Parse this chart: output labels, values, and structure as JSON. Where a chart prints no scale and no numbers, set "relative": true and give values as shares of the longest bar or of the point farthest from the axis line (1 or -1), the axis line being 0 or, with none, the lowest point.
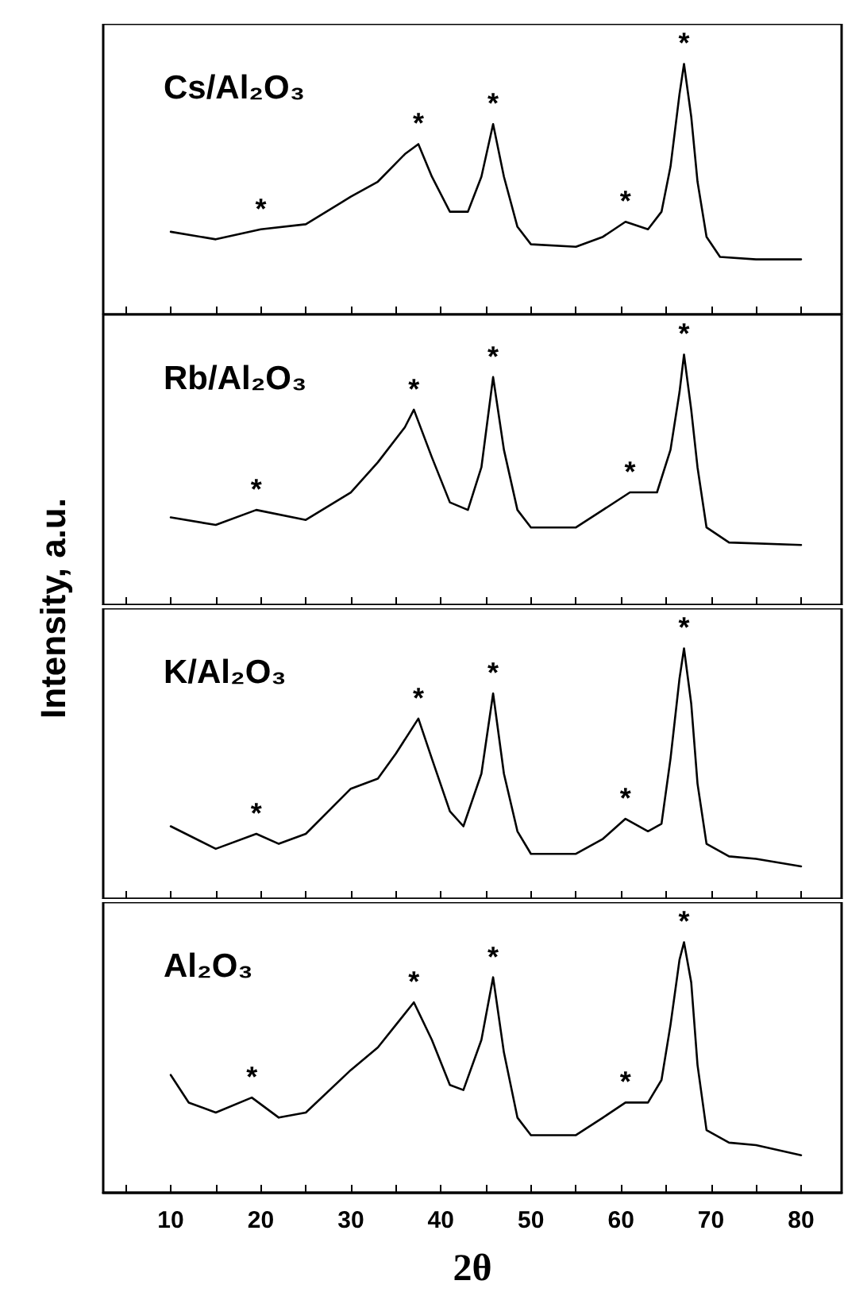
{
  "chart_data": [
    {
      "type": "line",
      "relative": true,
      "marker": "none",
      "tick_labels": false,
      "ylabel": "Intensity, a.u.",
      "xlim": [
        2.5,
        84.5
      ],
      "xticks": [
        {
          "value": 5,
          "label": null
        },
        10,
        {
          "value": 15,
          "label": null
        },
        20,
        {
          "value": 25,
          "label": null
        },
        30,
        {
          "value": 35,
          "label": null
        },
        40,
        {
          "value": 45,
          "label": null
        },
        50,
        {
          "value": 55,
          "label": null
        },
        60,
        {
          "value": 65,
          "label": null
        },
        70,
        {
          "value": 75,
          "label": null
        },
        80
      ],
      "x": [
        10,
        15,
        20,
        25,
        30,
        33,
        36,
        37.5,
        39,
        41,
        43,
        44.5,
        45.8,
        47,
        48.5,
        50,
        55,
        58,
        60.5,
        63,
        64.5,
        65.5,
        66.5,
        67,
        67.8,
        68.5,
        69.5,
        71,
        75,
        80
      ],
      "series": [
        {
          "name": "Cs/Al₂O₃",
          "color": "#000000",
          "values": [
            0.33,
            0.3,
            0.34,
            0.36,
            0.47,
            0.53,
            0.64,
            0.68,
            0.55,
            0.41,
            0.41,
            0.55,
            0.76,
            0.55,
            0.35,
            0.28,
            0.27,
            0.31,
            0.37,
            0.34,
            0.41,
            0.59,
            0.88,
            1.0,
            0.79,
            0.53,
            0.31,
            0.23,
            0.22,
            0.22
          ]
        }
      ],
      "annotations": [
        {
          "text": "*",
          "x": 20,
          "y": 0.34
        },
        {
          "text": "*",
          "x": 37.5,
          "y": 0.68
        },
        {
          "text": "*",
          "x": 45.8,
          "y": 0.76
        },
        {
          "text": "*",
          "x": 60.5,
          "y": 0.37
        },
        {
          "text": "*",
          "x": 67,
          "y": 1.0
        }
      ]
    },
    {
      "type": "line",
      "relative": true,
      "marker": "none",
      "tick_labels": false,
      "xlim": [
        2.5,
        84.5
      ],
      "xticks": [
        {
          "value": 5,
          "label": null
        },
        10,
        {
          "value": 15,
          "label": null
        },
        20,
        {
          "value": 25,
          "label": null
        },
        30,
        {
          "value": 35,
          "label": null
        },
        40,
        {
          "value": 45,
          "label": null
        },
        50,
        {
          "value": 55,
          "label": null
        },
        60,
        {
          "value": 65,
          "label": null
        },
        70,
        {
          "value": 75,
          "label": null
        },
        80
      ],
      "x": [
        10,
        15,
        19.5,
        25,
        30,
        33,
        36,
        37,
        39,
        41,
        43,
        44.5,
        45.8,
        47,
        48.5,
        50,
        55,
        58,
        61,
        64,
        65.5,
        66.5,
        67,
        67.8,
        68.5,
        69.5,
        72,
        80
      ],
      "series": [
        {
          "name": "Rb/Al₂O₃",
          "color": "#000000",
          "values": [
            0.35,
            0.32,
            0.38,
            0.34,
            0.45,
            0.57,
            0.71,
            0.78,
            0.59,
            0.41,
            0.38,
            0.55,
            0.91,
            0.62,
            0.38,
            0.31,
            0.31,
            0.38,
            0.45,
            0.45,
            0.62,
            0.85,
            1.0,
            0.78,
            0.55,
            0.31,
            0.25,
            0.24
          ]
        }
      ],
      "annotations": [
        {
          "text": "*",
          "x": 19.5,
          "y": 0.38
        },
        {
          "text": "*",
          "x": 37,
          "y": 0.78
        },
        {
          "text": "*",
          "x": 45.8,
          "y": 0.91
        },
        {
          "text": "*",
          "x": 61,
          "y": 0.45
        },
        {
          "text": "*",
          "x": 67,
          "y": 1.0
        }
      ]
    },
    {
      "type": "line",
      "relative": true,
      "marker": "none",
      "tick_labels": false,
      "xlim": [
        2.5,
        84.5
      ],
      "xticks": [
        {
          "value": 5,
          "label": null
        },
        10,
        {
          "value": 15,
          "label": null
        },
        20,
        {
          "value": 25,
          "label": null
        },
        30,
        {
          "value": 35,
          "label": null
        },
        40,
        {
          "value": 45,
          "label": null
        },
        50,
        {
          "value": 55,
          "label": null
        },
        60,
        {
          "value": 65,
          "label": null
        },
        70,
        {
          "value": 75,
          "label": null
        },
        80
      ],
      "x": [
        10,
        15,
        19.5,
        22,
        25,
        30,
        33,
        35,
        37.5,
        39,
        41,
        42.5,
        44.5,
        45.8,
        47,
        48.5,
        50,
        55,
        58,
        60.5,
        63,
        64.5,
        65.5,
        66.5,
        67,
        67.8,
        68.5,
        69.5,
        72,
        75,
        80
      ],
      "series": [
        {
          "name": "K/Al₂O₃",
          "color": "#000000",
          "values": [
            0.29,
            0.2,
            0.26,
            0.22,
            0.26,
            0.44,
            0.48,
            0.58,
            0.72,
            0.56,
            0.35,
            0.29,
            0.5,
            0.82,
            0.5,
            0.27,
            0.18,
            0.18,
            0.24,
            0.32,
            0.27,
            0.3,
            0.56,
            0.88,
            1.0,
            0.78,
            0.46,
            0.22,
            0.17,
            0.16,
            0.13
          ]
        }
      ],
      "annotations": [
        {
          "text": "*",
          "x": 19.5,
          "y": 0.26
        },
        {
          "text": "*",
          "x": 37.5,
          "y": 0.72
        },
        {
          "text": "*",
          "x": 45.8,
          "y": 0.82
        },
        {
          "text": "*",
          "x": 60.5,
          "y": 0.32
        },
        {
          "text": "*",
          "x": 67,
          "y": 1.0
        }
      ]
    },
    {
      "type": "line",
      "relative": true,
      "marker": "none",
      "tick_labels": "x",
      "xlabel": "2θ",
      "xlim": [
        2.5,
        84.5
      ],
      "xticks": [
        {
          "value": 5,
          "label": null
        },
        10,
        {
          "value": 15,
          "label": null
        },
        20,
        {
          "value": 25,
          "label": null
        },
        30,
        {
          "value": 35,
          "label": null
        },
        40,
        {
          "value": 45,
          "label": null
        },
        50,
        {
          "value": 55,
          "label": null
        },
        60,
        {
          "value": 65,
          "label": null
        },
        70,
        {
          "value": 75,
          "label": null
        },
        80
      ],
      "x": [
        10,
        12,
        15,
        19,
        22,
        25,
        30,
        33,
        35,
        37,
        39,
        41,
        42.5,
        44.5,
        45.8,
        47,
        48.5,
        50,
        55,
        58,
        60.5,
        63,
        64.5,
        65.5,
        66.5,
        67,
        67.8,
        68.5,
        69.5,
        72,
        75,
        80
      ],
      "series": [
        {
          "name": "Al₂O₃",
          "color": "#000000",
          "values": [
            0.47,
            0.36,
            0.32,
            0.38,
            0.3,
            0.32,
            0.49,
            0.58,
            0.67,
            0.76,
            0.61,
            0.43,
            0.41,
            0.61,
            0.86,
            0.56,
            0.3,
            0.23,
            0.23,
            0.3,
            0.36,
            0.36,
            0.45,
            0.67,
            0.93,
            1.0,
            0.84,
            0.51,
            0.25,
            0.2,
            0.19,
            0.15
          ]
        }
      ],
      "annotations": [
        {
          "text": "*",
          "x": 19,
          "y": 0.38
        },
        {
          "text": "*",
          "x": 37,
          "y": 0.76
        },
        {
          "text": "*",
          "x": 45.8,
          "y": 0.86
        },
        {
          "text": "*",
          "x": 60.5,
          "y": 0.36
        },
        {
          "text": "*",
          "x": 67,
          "y": 1.0
        }
      ]
    }
  ]
}
